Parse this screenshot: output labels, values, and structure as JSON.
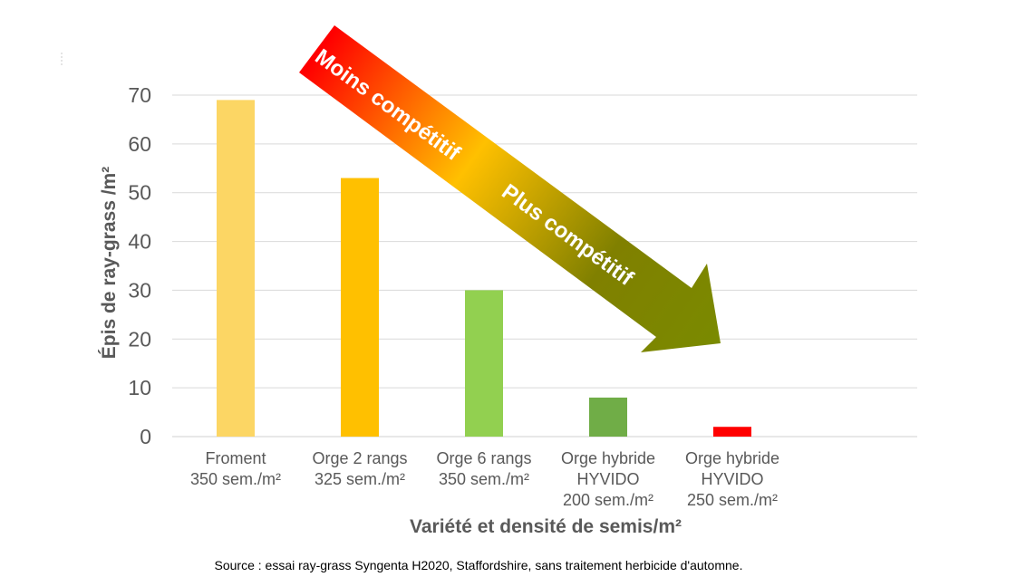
{
  "chart_data": {
    "type": "bar",
    "categories": [
      [
        "Froment",
        "350 sem./m²"
      ],
      [
        "Orge 2 rangs",
        "325 sem./m²"
      ],
      [
        "Orge 6 rangs",
        "350 sem./m²"
      ],
      [
        "Orge hybride",
        "HYVIDO",
        "200 sem./m²"
      ],
      [
        "Orge hybride",
        "HYVIDO",
        "250 sem./m²"
      ]
    ],
    "values": [
      69,
      53,
      30,
      8,
      2
    ],
    "bar_colors": [
      "#fcd664",
      "#ffc000",
      "#92d050",
      "#70ad47",
      "#ff0000"
    ],
    "xlabel": "Variété et densité de semis/m²",
    "ylabel": "Épis de ray-grass /m²",
    "ylim": [
      0,
      70
    ],
    "yticks": [
      0,
      10,
      20,
      30,
      40,
      50,
      60,
      70
    ],
    "grid": true,
    "legend": "none",
    "annotations": {
      "arrow_top_text": "Moins compétitif",
      "arrow_bottom_text": "Plus compétitif",
      "arrow_gradient": [
        "#ff0000",
        "#ffc000",
        "#808000",
        "#7a8a00"
      ]
    }
  },
  "source": "Source : essai ray-grass Syngenta H2020, Staffordshire, sans traitement herbicide d'automne."
}
